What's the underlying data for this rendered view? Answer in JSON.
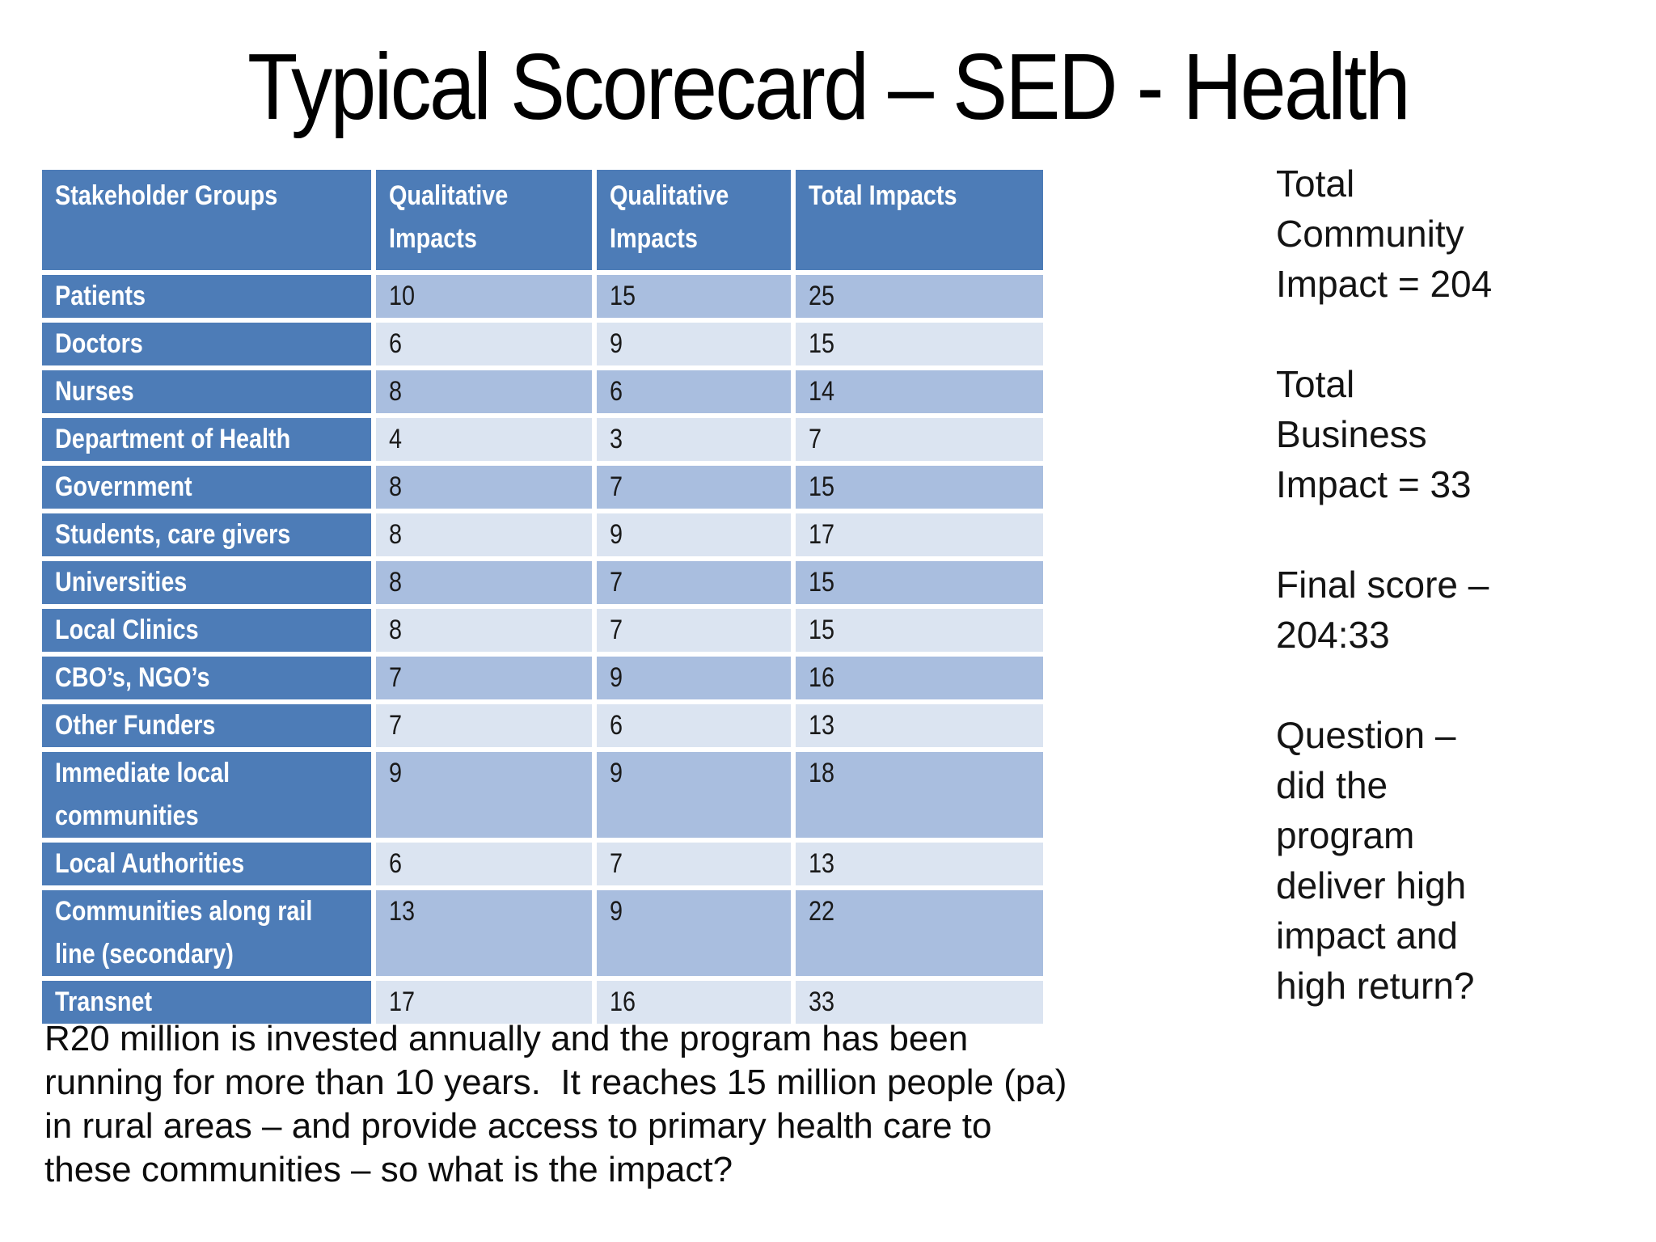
{
  "slide": {
    "title": "Typical Scorecard – SED - Health"
  },
  "table": {
    "headers": [
      "Stakeholder Groups",
      "Qualitative Impacts",
      "Qualitative Impacts",
      "Total Impacts"
    ],
    "rows": [
      {
        "label": "Patients",
        "values": [
          "10",
          "15",
          "25"
        ]
      },
      {
        "label": "Doctors",
        "values": [
          "6",
          "9",
          "15"
        ]
      },
      {
        "label": "Nurses",
        "values": [
          "8",
          "6",
          "14"
        ]
      },
      {
        "label": "Department of Health",
        "values": [
          "4",
          "3",
          "7"
        ]
      },
      {
        "label": "Government",
        "values": [
          "8",
          "7",
          "15"
        ]
      },
      {
        "label": "Students, care givers",
        "values": [
          "8",
          "9",
          "17"
        ]
      },
      {
        "label": "Universities",
        "values": [
          "8",
          "7",
          "15"
        ]
      },
      {
        "label": "Local Clinics",
        "values": [
          "8",
          "7",
          "15"
        ]
      },
      {
        "label": "CBO’s, NGO’s",
        "values": [
          "7",
          "9",
          "16"
        ]
      },
      {
        "label": "Other Funders",
        "values": [
          "7",
          "6",
          "13"
        ]
      },
      {
        "label": "Immediate local communities",
        "values": [
          "9",
          "9",
          "18"
        ]
      },
      {
        "label": "Local Authorities",
        "values": [
          "6",
          "7",
          "13"
        ]
      },
      {
        "label": "Communities along rail line (secondary)",
        "values": [
          "13",
          "9",
          "22"
        ]
      },
      {
        "label": "Transnet",
        "values": [
          "17",
          "16",
          "33"
        ]
      }
    ]
  },
  "sidebar": {
    "blocks": [
      "Total Community Impact = 204",
      "Total Business Impact = 33",
      "Final score – 204:33",
      "Question – did the program deliver high impact and high return?"
    ]
  },
  "footer": {
    "paragraph": "R20 million is invested annually and the program has been\nrunning for more than 10 years.  It reaches 15 million people (pa)\nin rural areas – and provide access to primary health care to\nthese communities – so what is the impact?"
  },
  "colors": {
    "header_blue": "#4D7CB7",
    "band_medium": "#A9BEDF",
    "band_light": "#DBE4F1",
    "label_text": "#FFFFFF",
    "value_text": "#1A1A1A"
  }
}
